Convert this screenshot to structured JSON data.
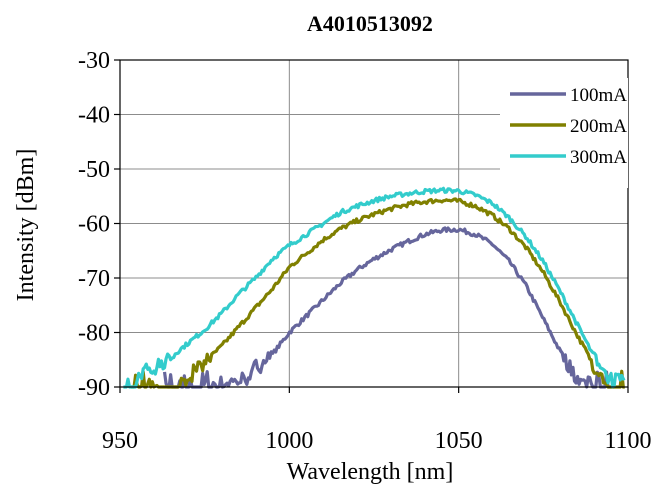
{
  "chart_data": {
    "type": "line",
    "title": "A4010513092",
    "xlabel": "Wavelength [nm]",
    "ylabel": "Intensity [dBm]",
    "xlim": [
      950,
      1100
    ],
    "ylim": [
      -90,
      -30
    ],
    "xticks": [
      950,
      1000,
      1050,
      1100
    ],
    "yticks": [
      -30,
      -40,
      -50,
      -60,
      -70,
      -80,
      -90
    ],
    "xtick_labels": [
      "950",
      "1000",
      "1050",
      "1100"
    ],
    "ytick_labels": [
      "-30",
      "-40",
      "-50",
      "-60",
      "-70",
      "-80",
      "-90"
    ],
    "grid": true,
    "legend_position": "top-right",
    "series": [
      {
        "name": "100mA",
        "color": "#66669c",
        "x": [
          978,
          985,
          988,
          990,
          995,
          1000,
          1005,
          1010,
          1015,
          1020,
          1025,
          1030,
          1035,
          1040,
          1045,
          1050,
          1055,
          1060,
          1065,
          1070,
          1075,
          1080,
          1085,
          1088
        ],
        "y": [
          -89.5,
          -89,
          -88,
          -86.5,
          -84,
          -80,
          -77,
          -74,
          -71,
          -68.5,
          -66.5,
          -64.8,
          -63.3,
          -62,
          -61.2,
          -61.1,
          -62,
          -63.8,
          -67,
          -71.5,
          -77.5,
          -83.5,
          -88.5,
          -90
        ]
      },
      {
        "name": "200mA",
        "color": "#808000",
        "x": [
          968,
          970,
          975,
          980,
          985,
          990,
          995,
          1000,
          1005,
          1010,
          1015,
          1020,
          1025,
          1030,
          1035,
          1040,
          1045,
          1050,
          1055,
          1060,
          1065,
          1070,
          1075,
          1080,
          1085,
          1090,
          1094
        ],
        "y": [
          -89,
          -88,
          -85.5,
          -82.5,
          -79,
          -75.5,
          -72,
          -68,
          -65.5,
          -63,
          -61,
          -59.5,
          -58.3,
          -57.3,
          -56.5,
          -56,
          -55.7,
          -55.9,
          -56.8,
          -58.5,
          -61,
          -64.5,
          -69,
          -74.5,
          -80.5,
          -86,
          -90
        ]
      },
      {
        "name": "300mA",
        "color": "#33cccc",
        "x": [
          955,
          960,
          965,
          970,
          975,
          980,
          985,
          990,
          995,
          1000,
          1005,
          1010,
          1015,
          1020,
          1025,
          1030,
          1035,
          1040,
          1045,
          1050,
          1055,
          1060,
          1065,
          1070,
          1075,
          1080,
          1085,
          1090,
          1095,
          1100
        ],
        "y": [
          -88,
          -86.5,
          -84.5,
          -82,
          -79.5,
          -76.5,
          -73,
          -70,
          -66.5,
          -64,
          -62,
          -60,
          -58,
          -56.8,
          -55.8,
          -55,
          -54.5,
          -54.1,
          -53.9,
          -54,
          -54.8,
          -56.3,
          -59,
          -62.5,
          -67,
          -72.5,
          -78.5,
          -84.5,
          -88.5,
          -89.5
        ]
      }
    ]
  }
}
